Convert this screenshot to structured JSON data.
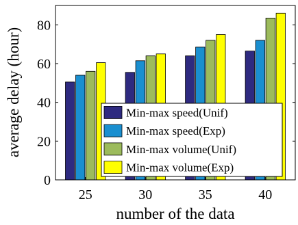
{
  "chart_data": {
    "type": "bar",
    "title": "",
    "xlabel": "number of the data",
    "ylabel": "average delay (hour)",
    "categories": [
      "25",
      "30",
      "35",
      "40"
    ],
    "ylim": [
      0,
      90
    ],
    "yticks": [
      "0",
      "20",
      "40",
      "60",
      "80"
    ],
    "grid": false,
    "legend_position": "bottom-right",
    "series": [
      {
        "name": "Min-max speed(Unif)",
        "color": "#2e2a80",
        "values": [
          50.5,
          55.5,
          64.0,
          66.5
        ]
      },
      {
        "name": "Min-max speed(Exp)",
        "color": "#1a8fd0",
        "values": [
          54.0,
          61.5,
          68.5,
          72.0
        ]
      },
      {
        "name": "Min-max volume(Unif)",
        "color": "#9cbb5c",
        "values": [
          56.0,
          64.0,
          72.0,
          83.5
        ]
      },
      {
        "name": "Min-max volume(Exp)",
        "color": "#ffff00",
        "values": [
          60.5,
          65.0,
          75.0,
          86.0
        ]
      }
    ]
  }
}
